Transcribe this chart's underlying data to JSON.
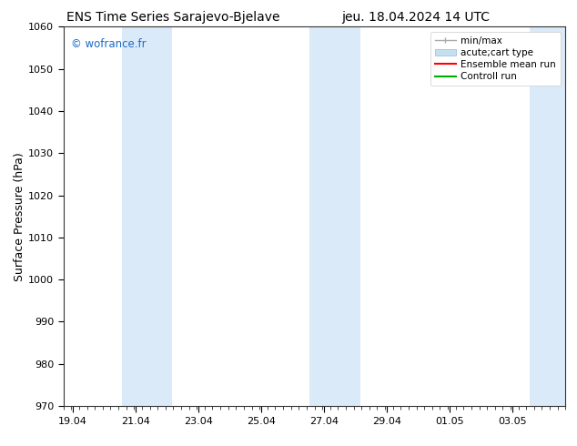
{
  "title_left": "ENS Time Series Sarajevo-Bjelave",
  "title_right": "jeu. 18.04.2024 14 UTC",
  "ylabel": "Surface Pressure (hPa)",
  "ylim": [
    970,
    1060
  ],
  "yticks": [
    970,
    980,
    990,
    1000,
    1010,
    1020,
    1030,
    1040,
    1050,
    1060
  ],
  "xtick_labels": [
    "19.04",
    "21.04",
    "23.04",
    "25.04",
    "27.04",
    "29.04",
    "01.05",
    "03.05"
  ],
  "xtick_positions": [
    0,
    2,
    4,
    6,
    8,
    10,
    12,
    14
  ],
  "xlim": [
    -0.3,
    15.7
  ],
  "watermark": "© wofrance.fr",
  "watermark_color": "#1a6ac9",
  "bg_color": "#ffffff",
  "plot_bg_color": "#ffffff",
  "shaded_bands": [
    {
      "x_start": 1.55,
      "x_end": 3.15,
      "color": "#daeaf8"
    },
    {
      "x_start": 7.55,
      "x_end": 9.15,
      "color": "#daeaf8"
    },
    {
      "x_start": 14.55,
      "x_end": 15.7,
      "color": "#daeaf8"
    }
  ],
  "legend_entries": [
    {
      "label": "min/max",
      "color": "#aaaaaa",
      "lw": 1.0
    },
    {
      "label": "acute;cart type",
      "color": "#c5dff0",
      "lw": 8
    },
    {
      "label": "Ensemble mean run",
      "color": "#ff0000",
      "lw": 1.5
    },
    {
      "label": "Controll run",
      "color": "#00aa00",
      "lw": 1.5
    }
  ],
  "title_fontsize": 10,
  "tick_label_fontsize": 8,
  "ylabel_fontsize": 9,
  "legend_fontsize": 7.5
}
